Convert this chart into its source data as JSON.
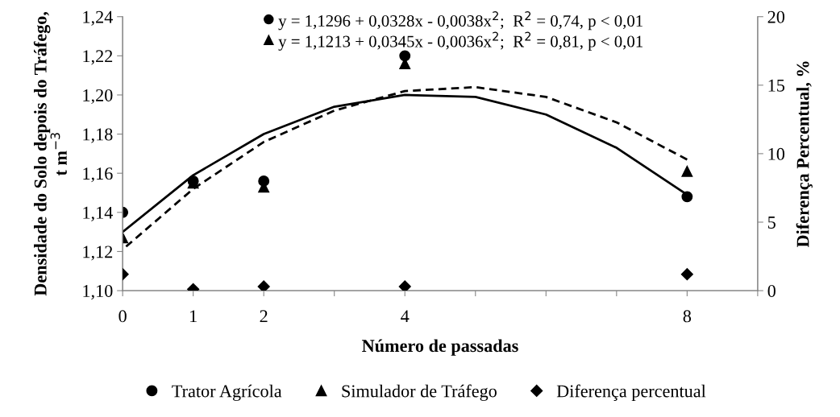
{
  "chart_data": {
    "type": "scatter",
    "xlabel": "Número de passadas",
    "ylabel": "Densidade do Solo depois do Tráfego,\nt m$^{−3}$",
    "y2label": "Diferença Percentual, %",
    "x": [
      0,
      1,
      2,
      4,
      8
    ],
    "series": [
      {
        "name": "Trator Agrícola",
        "color": "#000000",
        "marker": "circle",
        "values": [
          1.14,
          1.156,
          1.156,
          1.22,
          1.148
        ]
      },
      {
        "name": "Simulador de Tráfego",
        "color": "#000000",
        "marker": "triangle",
        "values": [
          1.127,
          1.155,
          1.153,
          1.216,
          1.161
        ]
      },
      {
        "name": "Diferença percentual",
        "color": "#000000",
        "marker": "diamond",
        "axis": "y2",
        "values": [
          1.2,
          0.1,
          0.3,
          0.3,
          1.2
        ]
      },
      {
        "type": "line",
        "color": "#000000",
        "marker": "none",
        "line_style": "solid",
        "x": [
          0,
          1,
          2,
          3,
          4,
          5,
          6,
          7,
          8
        ],
        "values": [
          1.13,
          1.159,
          1.18,
          1.194,
          1.2,
          1.199,
          1.19,
          1.173,
          1.149
        ]
      },
      {
        "type": "line",
        "color": "#000000",
        "marker": "none",
        "line_style": "dashed",
        "x": [
          0,
          1,
          2,
          3,
          4,
          5,
          6,
          7,
          8
        ],
        "values": [
          1.121,
          1.152,
          1.176,
          1.192,
          1.202,
          1.204,
          1.199,
          1.186,
          1.167
        ]
      }
    ],
    "annotations": [
      "y = 1,1296 + 0,0328x - 0,0038x$^{2}$;  R$^{2}$ = 0,74, p < 0,01",
      "y = 1,1213 + 0,0345x - 0,0036x$^{2}$;  R$^{2}$ = 0,81, p < 0,01"
    ],
    "xlim": [
      0,
      9
    ],
    "xticks": [
      0,
      1,
      2,
      {
        "value": 3,
        "label": null
      },
      4,
      {
        "value": 5,
        "label": null
      },
      {
        "value": 6,
        "label": null
      },
      {
        "value": 7,
        "label": null
      },
      8,
      {
        "value": 9,
        "label": null
      }
    ],
    "ylim": [
      1.1,
      1.24
    ],
    "yticks": [
      {
        "value": 1.1,
        "label": "1,10"
      },
      {
        "value": 1.12,
        "label": "1,12"
      },
      {
        "value": 1.14,
        "label": "1,14"
      },
      {
        "value": 1.16,
        "label": "1,16"
      },
      {
        "value": 1.18,
        "label": "1,18"
      },
      {
        "value": 1.2,
        "label": "1,20"
      },
      {
        "value": 1.22,
        "label": "1,22"
      },
      {
        "value": 1.24,
        "label": "1,24"
      }
    ],
    "y2lim": [
      0,
      20
    ],
    "y2ticks": [
      0,
      5,
      10,
      15,
      20
    ],
    "grid": false,
    "legend": "bottom"
  }
}
